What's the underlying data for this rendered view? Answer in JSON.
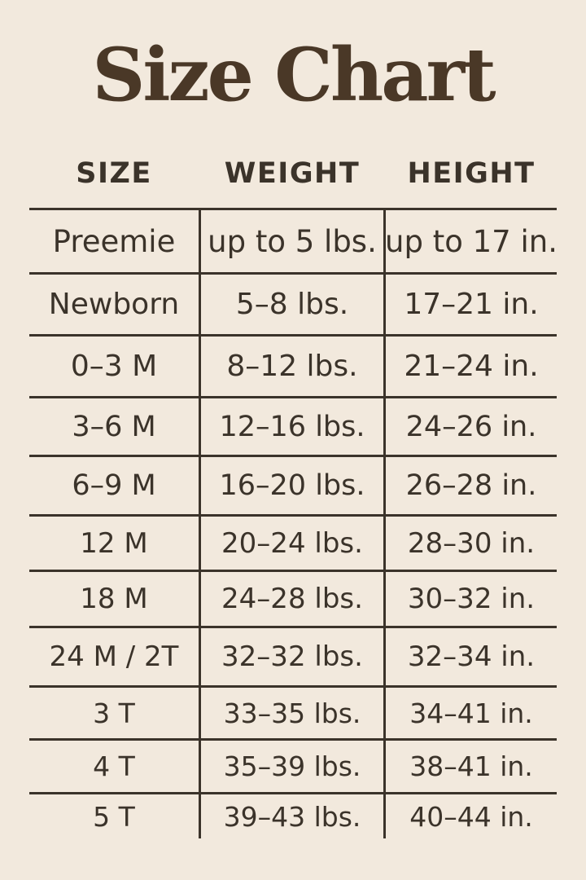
{
  "title": "Size Chart",
  "colors": {
    "background": "#f2e9dd",
    "ink": "#3b332a",
    "title": "#4a3827"
  },
  "chart_data": {
    "type": "table",
    "title": "Size Chart",
    "columns": [
      "SIZE",
      "WEIGHT",
      "HEIGHT"
    ],
    "rows": [
      [
        "Preemie",
        "up to 5 lbs.",
        "up to 17 in."
      ],
      [
        "Newborn",
        "5–8 lbs.",
        "17–21 in."
      ],
      [
        "0–3 M",
        "8–12 lbs.",
        "21–24 in."
      ],
      [
        "3–6 M",
        "12–16 lbs.",
        "24–26 in."
      ],
      [
        "6–9 M",
        "16–20 lbs.",
        "26–28 in."
      ],
      [
        "12 M",
        "20–24 lbs.",
        "28–30 in."
      ],
      [
        "18 M",
        "24–28 lbs.",
        "30–32 in."
      ],
      [
        "24 M / 2T",
        "32–32 lbs.",
        "32–34 in."
      ],
      [
        "3 T",
        "33–35 lbs.",
        "34–41 in."
      ],
      [
        "4 T",
        "35–39 lbs.",
        "38–41 in."
      ],
      [
        "5 T",
        "39–43 lbs.",
        "40–44 in."
      ]
    ],
    "layout": {
      "grid": "horizontal rules between rows, vertical rules around middle column, no outer bottom rule",
      "alignment": "center"
    }
  }
}
